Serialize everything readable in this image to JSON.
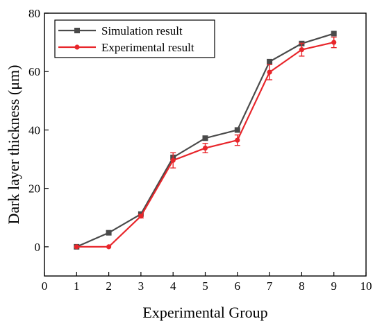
{
  "chart_data": {
    "type": "line",
    "title": "",
    "xlabel": "Experimental Group",
    "ylabel": "Dark layer thickness (μm)",
    "xlim": [
      0,
      10
    ],
    "ylim": [
      -10,
      80
    ],
    "xticks": [
      0,
      1,
      2,
      3,
      4,
      5,
      6,
      7,
      8,
      9,
      10
    ],
    "yticks": [
      0,
      20,
      40,
      60,
      80
    ],
    "grid": false,
    "legend_position": "top-left",
    "series": [
      {
        "name": "Simulation result",
        "color": "#4a4a4a",
        "marker": "square",
        "x": [
          1,
          2,
          3,
          4,
          5,
          6,
          7,
          8,
          9
        ],
        "y": [
          0,
          4.8,
          11.2,
          30.6,
          37.2,
          40.0,
          63.4,
          69.6,
          73.0
        ]
      },
      {
        "name": "Experimental result",
        "color": "#e8262b",
        "marker": "circle",
        "x": [
          1,
          2,
          3,
          4,
          5,
          6,
          7,
          8,
          9
        ],
        "y": [
          0,
          0,
          10.5,
          29.6,
          33.8,
          36.5,
          59.8,
          67.5,
          70.0
        ],
        "error": [
          0,
          0,
          0.6,
          2.6,
          1.6,
          1.8,
          2.6,
          2.2,
          1.8
        ]
      }
    ]
  }
}
